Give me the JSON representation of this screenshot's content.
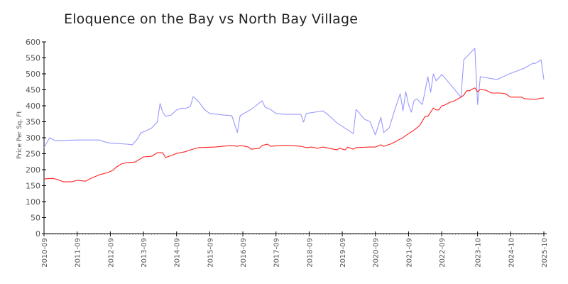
{
  "chart_data": {
    "type": "line",
    "title": "Eloquence on the Bay vs North Bay Village",
    "xlabel": "",
    "ylabel": "Price Per Sq. Ft",
    "ylim": [
      0,
      600
    ],
    "xlim": [
      "2010-09",
      "2025-10"
    ],
    "yticks": [
      0,
      50,
      100,
      150,
      200,
      250,
      300,
      350,
      400,
      450,
      500,
      550,
      600
    ],
    "xticks": [
      "2010-09",
      "2011-09",
      "2012-09",
      "2013-09",
      "2014-09",
      "2015-09",
      "2016-09",
      "2017-09",
      "2018-09",
      "2019-09",
      "2020-09",
      "2021-09",
      "2022-09",
      "2023-10",
      "2024-10",
      "2025-10"
    ],
    "grid": false,
    "legend": "none",
    "series": [
      {
        "color": "#9999ff",
        "points": [
          [
            "2010-09",
            269
          ],
          [
            "2010-11",
            300
          ],
          [
            "2011-01",
            291
          ],
          [
            "2011-09",
            293
          ],
          [
            "2012-05",
            293
          ],
          [
            "2012-07",
            287
          ],
          [
            "2012-09",
            283
          ],
          [
            "2012-11",
            282
          ],
          [
            "2013-03",
            280
          ],
          [
            "2013-05",
            278
          ],
          [
            "2013-07",
            298
          ],
          [
            "2013-08",
            315
          ],
          [
            "2013-10",
            322
          ],
          [
            "2013-12",
            331
          ],
          [
            "2014-02",
            349
          ],
          [
            "2014-03",
            407
          ],
          [
            "2014-04",
            380
          ],
          [
            "2014-05",
            367
          ],
          [
            "2014-07",
            371
          ],
          [
            "2014-09",
            387
          ],
          [
            "2014-11",
            393
          ],
          [
            "2014-12",
            391
          ],
          [
            "2015-02",
            398
          ],
          [
            "2015-03",
            429
          ],
          [
            "2015-05",
            413
          ],
          [
            "2015-07",
            389
          ],
          [
            "2015-09",
            376
          ],
          [
            "2016-02",
            371
          ],
          [
            "2016-05",
            369
          ],
          [
            "2016-07",
            316
          ],
          [
            "2016-08",
            369
          ],
          [
            "2016-12",
            389
          ],
          [
            "2017-04",
            416
          ],
          [
            "2017-05",
            396
          ],
          [
            "2017-07",
            389
          ],
          [
            "2017-09",
            376
          ],
          [
            "2017-12",
            373
          ],
          [
            "2018-06",
            373
          ],
          [
            "2018-07",
            349
          ],
          [
            "2018-08",
            376
          ],
          [
            "2018-11",
            380
          ],
          [
            "2019-02",
            384
          ],
          [
            "2019-04",
            371
          ],
          [
            "2019-07",
            347
          ],
          [
            "2020-01",
            313
          ],
          [
            "2020-02",
            389
          ],
          [
            "2020-05",
            358
          ],
          [
            "2020-07",
            351
          ],
          [
            "2020-09",
            309
          ],
          [
            "2020-11",
            364
          ],
          [
            "2020-12",
            316
          ],
          [
            "2021-02",
            331
          ],
          [
            "2021-04",
            387
          ],
          [
            "2021-06",
            438
          ],
          [
            "2021-07",
            384
          ],
          [
            "2021-08",
            444
          ],
          [
            "2021-09",
            404
          ],
          [
            "2021-10",
            380
          ],
          [
            "2021-11",
            416
          ],
          [
            "2021-12",
            422
          ],
          [
            "2022-02",
            404
          ],
          [
            "2022-04",
            491
          ],
          [
            "2022-05",
            442
          ],
          [
            "2022-06",
            500
          ],
          [
            "2022-07",
            478
          ],
          [
            "2022-09",
            498
          ],
          [
            "2022-10",
            489
          ],
          [
            "2023-04",
            427
          ],
          [
            "2023-05",
            544
          ],
          [
            "2023-09",
            580
          ],
          [
            "2023-10",
            404
          ],
          [
            "2023-11",
            491
          ],
          [
            "2024-05",
            482
          ],
          [
            "2024-09",
            498
          ],
          [
            "2025-03",
            518
          ],
          [
            "2025-06",
            533
          ],
          [
            "2025-07",
            533
          ],
          [
            "2025-09",
            544
          ],
          [
            "2025-10",
            482
          ]
        ]
      },
      {
        "color": "#ff2020",
        "points": [
          [
            "2010-09",
            171
          ],
          [
            "2010-12",
            173
          ],
          [
            "2011-02",
            169
          ],
          [
            "2011-04",
            162
          ],
          [
            "2011-07",
            162
          ],
          [
            "2011-09",
            167
          ],
          [
            "2011-12",
            164
          ],
          [
            "2012-02",
            173
          ],
          [
            "2012-05",
            184
          ],
          [
            "2012-08",
            191
          ],
          [
            "2012-10",
            198
          ],
          [
            "2012-11",
            207
          ],
          [
            "2013-01",
            218
          ],
          [
            "2013-03",
            222
          ],
          [
            "2013-06",
            224
          ],
          [
            "2013-09",
            240
          ],
          [
            "2013-12",
            242
          ],
          [
            "2014-02",
            253
          ],
          [
            "2014-04",
            253
          ],
          [
            "2014-05",
            238
          ],
          [
            "2014-07",
            244
          ],
          [
            "2014-09",
            251
          ],
          [
            "2014-12",
            256
          ],
          [
            "2015-02",
            262
          ],
          [
            "2015-05",
            269
          ],
          [
            "2015-11",
            271
          ],
          [
            "2016-05",
            276
          ],
          [
            "2016-07",
            273
          ],
          [
            "2016-08",
            276
          ],
          [
            "2016-11",
            271
          ],
          [
            "2016-12",
            264
          ],
          [
            "2017-03",
            267
          ],
          [
            "2017-04",
            276
          ],
          [
            "2017-06",
            280
          ],
          [
            "2017-07",
            273
          ],
          [
            "2017-11",
            276
          ],
          [
            "2018-02",
            276
          ],
          [
            "2018-06",
            273
          ],
          [
            "2018-08",
            269
          ],
          [
            "2018-10",
            271
          ],
          [
            "2018-12",
            267
          ],
          [
            "2019-02",
            271
          ],
          [
            "2019-07",
            262
          ],
          [
            "2019-08",
            267
          ],
          [
            "2019-10",
            262
          ],
          [
            "2019-11",
            271
          ],
          [
            "2020-01",
            264
          ],
          [
            "2020-02",
            269
          ],
          [
            "2020-07",
            271
          ],
          [
            "2020-09",
            271
          ],
          [
            "2020-11",
            278
          ],
          [
            "2020-12",
            273
          ],
          [
            "2021-03",
            282
          ],
          [
            "2021-06",
            296
          ],
          [
            "2021-07",
            300
          ],
          [
            "2021-08",
            307
          ],
          [
            "2021-11",
            324
          ],
          [
            "2022-01",
            338
          ],
          [
            "2022-03",
            367
          ],
          [
            "2022-04",
            367
          ],
          [
            "2022-06",
            393
          ],
          [
            "2022-07",
            387
          ],
          [
            "2022-08",
            387
          ],
          [
            "2022-09",
            400
          ],
          [
            "2022-10",
            402
          ],
          [
            "2022-12",
            411
          ],
          [
            "2023-01",
            413
          ],
          [
            "2023-03",
            422
          ],
          [
            "2023-05",
            433
          ],
          [
            "2023-06",
            447
          ],
          [
            "2023-07",
            447
          ],
          [
            "2023-09",
            456
          ],
          [
            "2023-10",
            444
          ],
          [
            "2023-11",
            451
          ],
          [
            "2024-01",
            449
          ],
          [
            "2024-03",
            440
          ],
          [
            "2024-06",
            440
          ],
          [
            "2024-08",
            438
          ],
          [
            "2024-10",
            427
          ],
          [
            "2025-02",
            427
          ],
          [
            "2025-03",
            422
          ],
          [
            "2025-07",
            420
          ],
          [
            "2025-09",
            424
          ],
          [
            "2025-10",
            424
          ]
        ]
      }
    ]
  }
}
